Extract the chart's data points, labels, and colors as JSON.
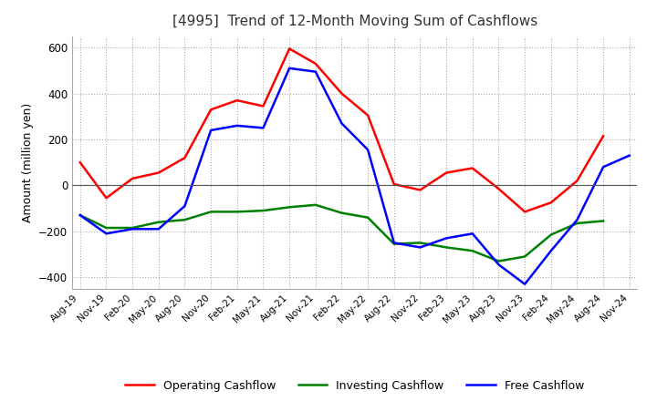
{
  "title": "[4995]  Trend of 12-Month Moving Sum of Cashflows",
  "ylabel": "Amount (million yen)",
  "ylim": [
    -450,
    650
  ],
  "yticks": [
    -400,
    -200,
    0,
    200,
    400,
    600
  ],
  "x_labels": [
    "Aug-19",
    "Nov-19",
    "Feb-20",
    "May-20",
    "Aug-20",
    "Nov-20",
    "Feb-21",
    "May-21",
    "Aug-21",
    "Nov-21",
    "Feb-22",
    "May-22",
    "Aug-22",
    "Nov-22",
    "Feb-23",
    "May-23",
    "Aug-23",
    "Nov-23",
    "Feb-24",
    "May-24",
    "Aug-24",
    "Nov-24"
  ],
  "operating": [
    100,
    -55,
    30,
    55,
    120,
    330,
    370,
    345,
    595,
    530,
    400,
    305,
    5,
    -20,
    55,
    75,
    -15,
    -115,
    -75,
    20,
    215,
    null
  ],
  "investing": [
    -130,
    -185,
    -185,
    -160,
    -150,
    -115,
    -115,
    -110,
    -95,
    -85,
    -120,
    -140,
    -255,
    -250,
    -270,
    -285,
    -330,
    -310,
    -215,
    -165,
    -155,
    null
  ],
  "free": [
    -130,
    -210,
    -190,
    -190,
    -90,
    240,
    260,
    250,
    510,
    495,
    270,
    155,
    -250,
    -270,
    -230,
    -210,
    -345,
    -430,
    -285,
    -150,
    80,
    130
  ],
  "colors": {
    "operating": "#ff0000",
    "investing": "#008000",
    "free": "#0000ff"
  },
  "legend_labels": [
    "Operating Cashflow",
    "Investing Cashflow",
    "Free Cashflow"
  ],
  "background": "#ffffff",
  "grid_color": "#aaaaaa"
}
